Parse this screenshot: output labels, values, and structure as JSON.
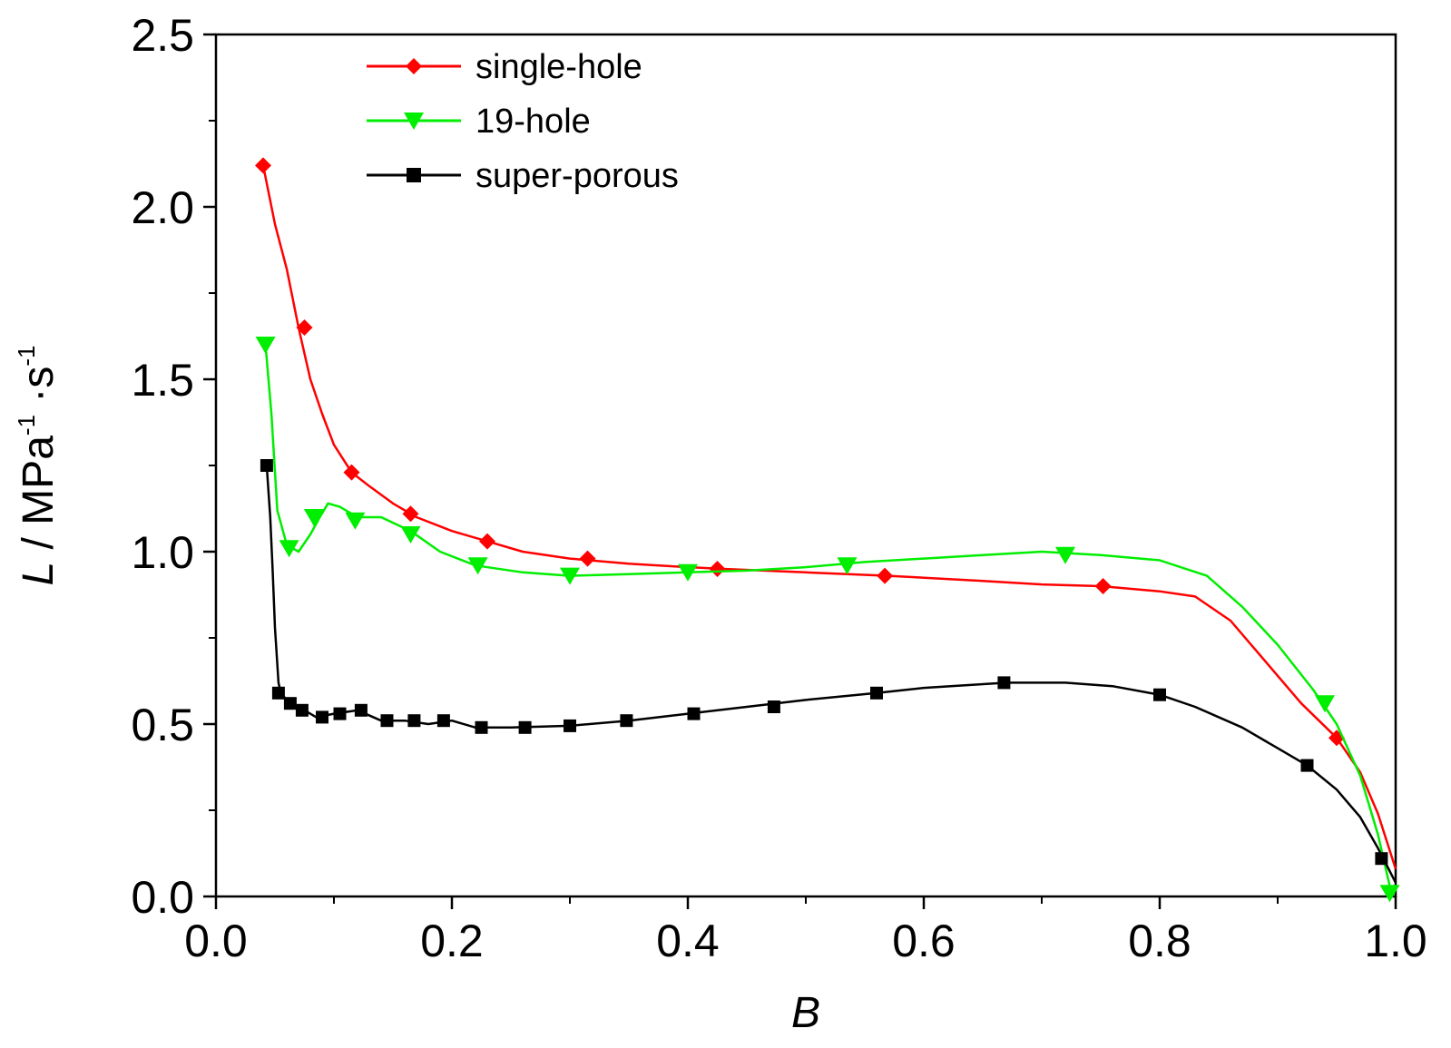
{
  "chart_data": {
    "type": "line",
    "xlabel": "B",
    "ylabel": {
      "italic": "L",
      "text": " / MPa",
      "sup1": "-1",
      "mid": " ·s",
      "sup2": "-1"
    },
    "xlim": [
      0.0,
      1.0
    ],
    "ylim": [
      0.0,
      2.5
    ],
    "xticks": [
      "0.0",
      "0.2",
      "0.4",
      "0.6",
      "0.8",
      "1.0"
    ],
    "yticks": [
      "0.0",
      "0.5",
      "1.0",
      "1.5",
      "2.0",
      "2.5"
    ],
    "grid": false,
    "legend_position": "top-left",
    "series": [
      {
        "name": "single-hole",
        "color": "#ff0000",
        "marker": "diamond",
        "line": [
          [
            0.04,
            2.12
          ],
          [
            0.05,
            1.95
          ],
          [
            0.06,
            1.82
          ],
          [
            0.07,
            1.65
          ],
          [
            0.08,
            1.5
          ],
          [
            0.09,
            1.4
          ],
          [
            0.1,
            1.31
          ],
          [
            0.115,
            1.23
          ],
          [
            0.13,
            1.19
          ],
          [
            0.15,
            1.14
          ],
          [
            0.17,
            1.1
          ],
          [
            0.2,
            1.06
          ],
          [
            0.23,
            1.03
          ],
          [
            0.26,
            1.0
          ],
          [
            0.3,
            0.98
          ],
          [
            0.35,
            0.965
          ],
          [
            0.4,
            0.955
          ],
          [
            0.43,
            0.95
          ],
          [
            0.5,
            0.94
          ],
          [
            0.57,
            0.93
          ],
          [
            0.65,
            0.915
          ],
          [
            0.7,
            0.905
          ],
          [
            0.75,
            0.9
          ],
          [
            0.8,
            0.885
          ],
          [
            0.83,
            0.87
          ],
          [
            0.86,
            0.8
          ],
          [
            0.89,
            0.68
          ],
          [
            0.92,
            0.56
          ],
          [
            0.95,
            0.46
          ],
          [
            0.97,
            0.36
          ],
          [
            0.985,
            0.24
          ],
          [
            1.0,
            0.08
          ]
        ],
        "markers": [
          [
            0.04,
            2.12
          ],
          [
            0.075,
            1.65
          ],
          [
            0.115,
            1.23
          ],
          [
            0.165,
            1.11
          ],
          [
            0.23,
            1.03
          ],
          [
            0.315,
            0.98
          ],
          [
            0.425,
            0.95
          ],
          [
            0.567,
            0.93
          ],
          [
            0.752,
            0.9
          ],
          [
            0.95,
            0.46
          ]
        ]
      },
      {
        "name": "19-hole",
        "color": "#00ee00",
        "marker": "triangle-down",
        "line": [
          [
            0.042,
            1.6
          ],
          [
            0.047,
            1.4
          ],
          [
            0.052,
            1.12
          ],
          [
            0.06,
            1.02
          ],
          [
            0.07,
            1.0
          ],
          [
            0.08,
            1.05
          ],
          [
            0.088,
            1.1
          ],
          [
            0.095,
            1.14
          ],
          [
            0.105,
            1.13
          ],
          [
            0.12,
            1.1
          ],
          [
            0.14,
            1.1
          ],
          [
            0.165,
            1.06
          ],
          [
            0.19,
            1.0
          ],
          [
            0.22,
            0.96
          ],
          [
            0.26,
            0.94
          ],
          [
            0.3,
            0.93
          ],
          [
            0.35,
            0.935
          ],
          [
            0.4,
            0.94
          ],
          [
            0.45,
            0.945
          ],
          [
            0.5,
            0.955
          ],
          [
            0.55,
            0.97
          ],
          [
            0.6,
            0.98
          ],
          [
            0.65,
            0.99
          ],
          [
            0.7,
            1.0
          ],
          [
            0.75,
            0.99
          ],
          [
            0.8,
            0.975
          ],
          [
            0.84,
            0.93
          ],
          [
            0.87,
            0.84
          ],
          [
            0.9,
            0.73
          ],
          [
            0.93,
            0.6
          ],
          [
            0.95,
            0.5
          ],
          [
            0.97,
            0.35
          ],
          [
            0.985,
            0.18
          ],
          [
            0.995,
            0.03
          ]
        ],
        "markers": [
          [
            0.042,
            1.6
          ],
          [
            0.062,
            1.01
          ],
          [
            0.083,
            1.1
          ],
          [
            0.118,
            1.09
          ],
          [
            0.165,
            1.05
          ],
          [
            0.222,
            0.96
          ],
          [
            0.3,
            0.93
          ],
          [
            0.4,
            0.94
          ],
          [
            0.535,
            0.96
          ],
          [
            0.72,
            0.99
          ],
          [
            0.94,
            0.56
          ],
          [
            0.995,
            0.01
          ]
        ]
      },
      {
        "name": "super-porous",
        "color": "#000000",
        "marker": "square",
        "line": [
          [
            0.043,
            1.25
          ],
          [
            0.046,
            1.1
          ],
          [
            0.048,
            0.95
          ],
          [
            0.05,
            0.78
          ],
          [
            0.053,
            0.62
          ],
          [
            0.055,
            0.59
          ],
          [
            0.06,
            0.57
          ],
          [
            0.065,
            0.55
          ],
          [
            0.075,
            0.54
          ],
          [
            0.085,
            0.52
          ],
          [
            0.1,
            0.53
          ],
          [
            0.12,
            0.54
          ],
          [
            0.14,
            0.51
          ],
          [
            0.16,
            0.51
          ],
          [
            0.18,
            0.5
          ],
          [
            0.2,
            0.51
          ],
          [
            0.22,
            0.49
          ],
          [
            0.25,
            0.49
          ],
          [
            0.3,
            0.495
          ],
          [
            0.35,
            0.51
          ],
          [
            0.4,
            0.53
          ],
          [
            0.45,
            0.55
          ],
          [
            0.5,
            0.57
          ],
          [
            0.56,
            0.59
          ],
          [
            0.6,
            0.605
          ],
          [
            0.67,
            0.62
          ],
          [
            0.72,
            0.62
          ],
          [
            0.76,
            0.61
          ],
          [
            0.8,
            0.585
          ],
          [
            0.83,
            0.55
          ],
          [
            0.87,
            0.49
          ],
          [
            0.9,
            0.43
          ],
          [
            0.925,
            0.38
          ],
          [
            0.95,
            0.31
          ],
          [
            0.97,
            0.23
          ],
          [
            0.985,
            0.14
          ],
          [
            1.0,
            0.04
          ]
        ],
        "markers": [
          [
            0.043,
            1.25
          ],
          [
            0.053,
            0.59
          ],
          [
            0.063,
            0.56
          ],
          [
            0.073,
            0.54
          ],
          [
            0.09,
            0.52
          ],
          [
            0.105,
            0.53
          ],
          [
            0.123,
            0.54
          ],
          [
            0.145,
            0.51
          ],
          [
            0.168,
            0.51
          ],
          [
            0.193,
            0.51
          ],
          [
            0.225,
            0.49
          ],
          [
            0.262,
            0.49
          ],
          [
            0.3,
            0.495
          ],
          [
            0.348,
            0.51
          ],
          [
            0.405,
            0.53
          ],
          [
            0.473,
            0.55
          ],
          [
            0.56,
            0.59
          ],
          [
            0.668,
            0.62
          ],
          [
            0.8,
            0.585
          ],
          [
            0.925,
            0.38
          ],
          [
            0.988,
            0.11
          ]
        ]
      }
    ]
  }
}
